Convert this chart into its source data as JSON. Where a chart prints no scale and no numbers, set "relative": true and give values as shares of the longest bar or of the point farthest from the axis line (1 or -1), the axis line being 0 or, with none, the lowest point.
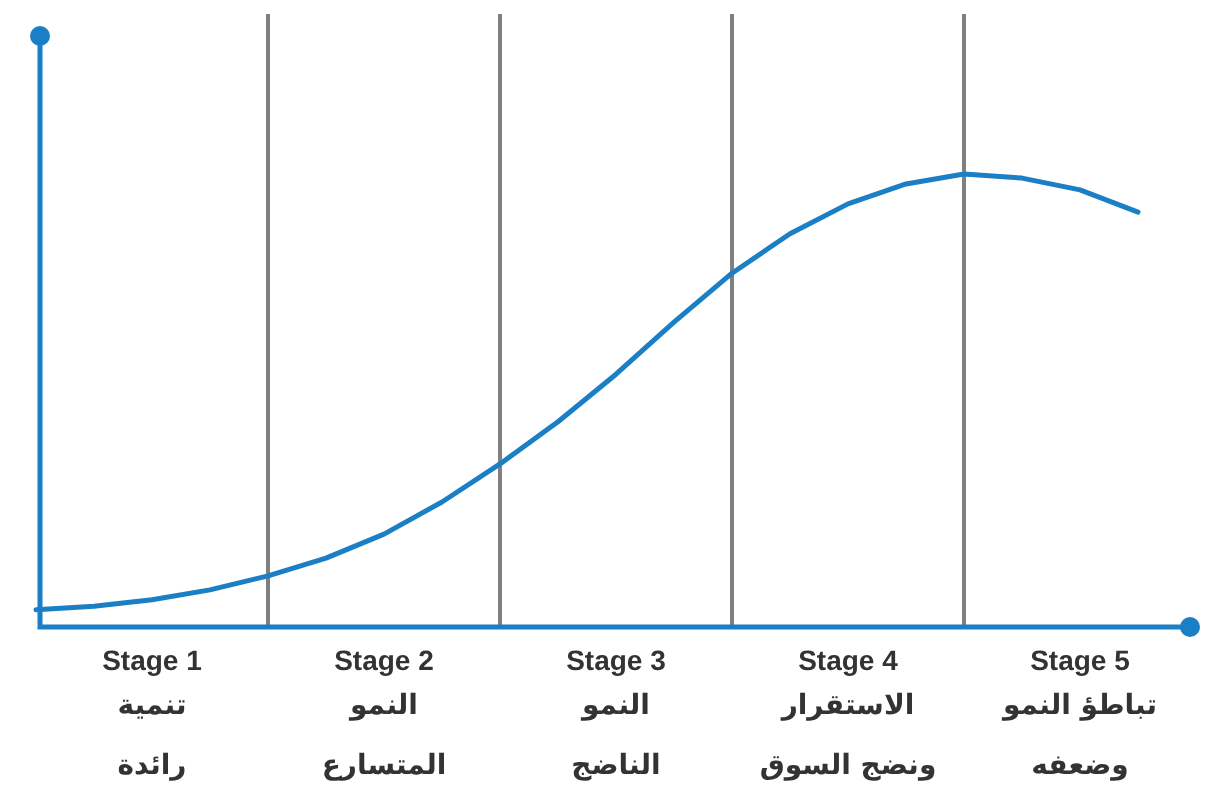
{
  "chart_data": {
    "type": "line",
    "relative": true,
    "categories": [
      null,
      null,
      null,
      null,
      null,
      null,
      null,
      null,
      null,
      null,
      null,
      null,
      null,
      null,
      null,
      null,
      null,
      null,
      null,
      null
    ],
    "series": [
      {
        "color": "#1a7fc4",
        "values": [
          0.038,
          0.046,
          0.06,
          0.082,
          0.113,
          0.152,
          0.205,
          0.276,
          0.36,
          0.453,
          0.558,
          0.673,
          0.781,
          0.868,
          0.934,
          0.978,
          1,
          0.991,
          0.965,
          0.916
        ]
      }
    ],
    "grid": "x",
    "annotations": [
      "Stage 1",
      "Stage 2",
      "Stage 3",
      "Stage 4",
      "Stage 5",
      "تنمية\nرائدة",
      "النمو\nالمتسارع",
      "النمو\nالناضج",
      "الاستقرار\nونضج السوق",
      "تباطؤ النمو\nوضعفه"
    ]
  }
}
